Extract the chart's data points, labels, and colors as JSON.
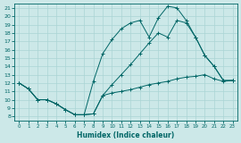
{
  "background_color": "#cce8e8",
  "line_color": "#006666",
  "grid_color": "#aad4d4",
  "xlabel": "Humidex (Indice chaleur)",
  "xlim": [
    -0.5,
    23.5
  ],
  "ylim": [
    7.5,
    21.5
  ],
  "xticks": [
    0,
    1,
    2,
    3,
    4,
    5,
    6,
    7,
    8,
    9,
    10,
    11,
    12,
    13,
    14,
    15,
    16,
    17,
    18,
    19,
    20,
    21,
    22,
    23
  ],
  "yticks": [
    8,
    9,
    10,
    11,
    12,
    13,
    14,
    15,
    16,
    17,
    18,
    19,
    20,
    21
  ],
  "line_bottom_x": [
    0,
    1,
    2,
    3,
    4,
    5,
    6,
    7,
    8,
    9,
    10,
    11,
    12,
    13,
    14,
    15,
    16,
    17,
    18,
    19,
    20,
    21,
    22,
    23
  ],
  "line_bottom_y": [
    12.0,
    11.3,
    10.0,
    10.0,
    9.5,
    8.8,
    8.2,
    8.2,
    8.3,
    10.5,
    10.8,
    11.0,
    11.2,
    11.5,
    11.8,
    12.0,
    12.2,
    12.5,
    12.7,
    12.8,
    13.0,
    12.5,
    12.2,
    12.3
  ],
  "line_top_x": [
    0,
    1,
    2,
    3,
    4,
    5,
    6,
    7,
    8,
    9,
    10,
    11,
    12,
    13,
    14,
    15,
    16,
    17,
    18,
    19,
    20,
    21,
    22,
    23
  ],
  "line_top_y": [
    12.0,
    11.3,
    10.0,
    10.0,
    9.5,
    8.8,
    8.2,
    8.2,
    12.2,
    15.5,
    17.2,
    18.5,
    19.2,
    19.5,
    17.5,
    19.8,
    21.2,
    21.0,
    19.5,
    17.5,
    15.3,
    14.0,
    12.3,
    12.3
  ],
  "line_mid_x": [
    0,
    1,
    2,
    3,
    4,
    5,
    6,
    7,
    8,
    9,
    10,
    11,
    12,
    13,
    14,
    15,
    16,
    17,
    18,
    19,
    20,
    21,
    22,
    23
  ],
  "line_mid_y": [
    12.0,
    11.3,
    10.0,
    10.0,
    9.5,
    8.8,
    8.2,
    8.2,
    8.3,
    10.5,
    11.8,
    13.0,
    14.2,
    15.5,
    16.8,
    18.0,
    17.5,
    19.5,
    19.2,
    17.5,
    15.3,
    14.0,
    12.3,
    12.3
  ]
}
